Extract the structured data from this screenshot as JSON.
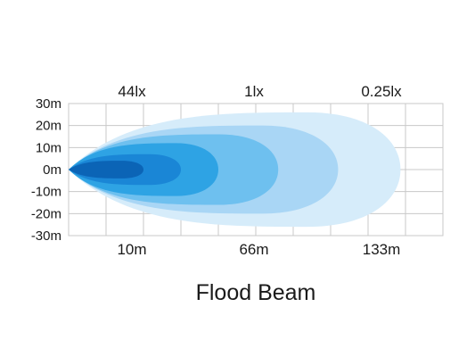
{
  "chart_data": {
    "type": "area",
    "title": "Flood Beam",
    "y_tick_labels": [
      "30m",
      "20m",
      "10m",
      "0m",
      "-10m",
      "-20m",
      "-30m"
    ],
    "y_ticks": [
      30,
      20,
      10,
      0,
      -10,
      -20,
      -30
    ],
    "ylim": [
      -30,
      30
    ],
    "x_max_m": 150,
    "distance_labels": [
      {
        "label": "10m",
        "x": 10
      },
      {
        "label": "66m",
        "x": 66
      },
      {
        "label": "133m",
        "x": 133
      }
    ],
    "lux_labels": [
      {
        "label": "44lx",
        "x": 10
      },
      {
        "label": "1lx",
        "x": 66
      },
      {
        "label": "0.25lx",
        "x": 133
      }
    ],
    "zones": [
      {
        "reach_m": 133,
        "half_width_m": 26,
        "color": "#d6ecfa"
      },
      {
        "reach_m": 108,
        "half_width_m": 20,
        "color": "#a9d6f5"
      },
      {
        "reach_m": 84,
        "half_width_m": 16,
        "color": "#6ec0ef"
      },
      {
        "reach_m": 60,
        "half_width_m": 12,
        "color": "#2ea3e4"
      },
      {
        "reach_m": 45,
        "half_width_m": 7,
        "color": "#1a86d6"
      },
      {
        "reach_m": 30,
        "half_width_m": 4,
        "color": "#0b64b6"
      }
    ],
    "grid": true
  }
}
